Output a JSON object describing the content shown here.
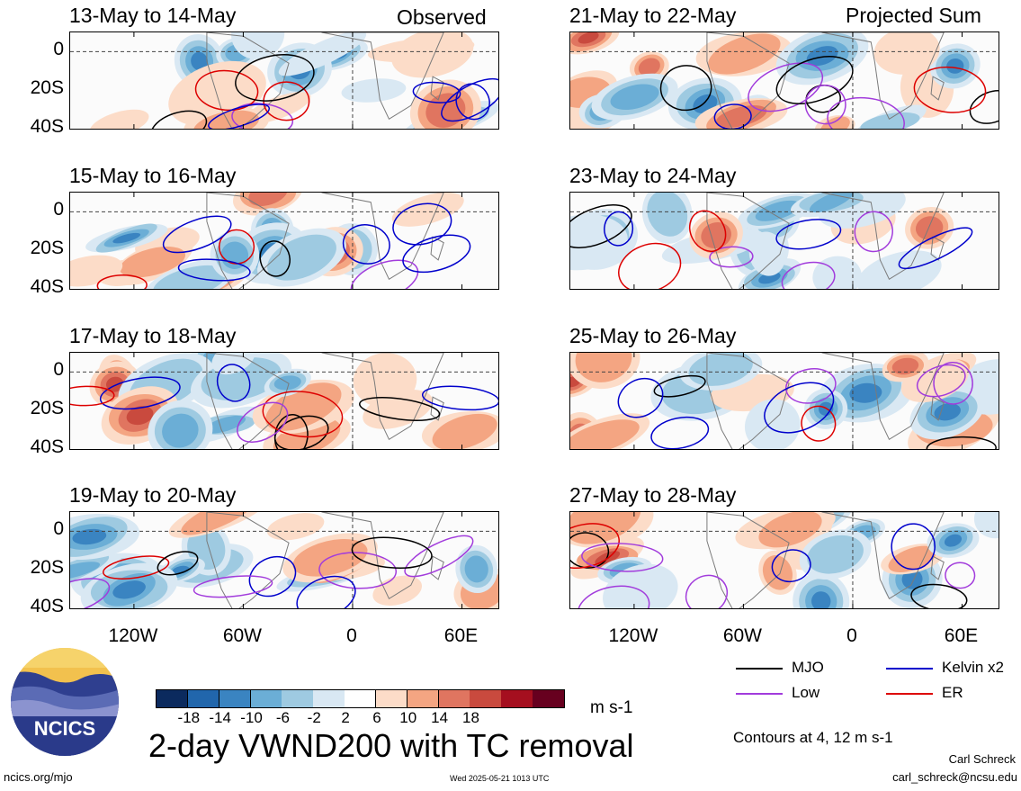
{
  "chart_data": {
    "type": "heatmap",
    "title": "2-day VWND200 with TC removal",
    "units": "m s-1",
    "colorbar_ticks": [
      "-18",
      "-14",
      "-10",
      "-6",
      "-2",
      "2",
      "6",
      "10",
      "14",
      "18"
    ],
    "colorbar_colors": [
      "#0b2a5e",
      "#2166ac",
      "#3a84c1",
      "#6baed6",
      "#9ecae1",
      "#d9e8f3",
      "#ffffff",
      "#fcdcc8",
      "#f4a582",
      "#e07560",
      "#c94a3e",
      "#a50f1f",
      "#67001f"
    ],
    "x_ticks": [
      "120W",
      "60W",
      "0",
      "60E"
    ],
    "y_ticks": [
      "0",
      "20S",
      "40S"
    ],
    "contour_note": "Contours at 4, 12 m s-1",
    "legend": [
      {
        "label": "MJO",
        "color": "#000000"
      },
      {
        "label": "Kelvin x2",
        "color": "#0000cc"
      },
      {
        "label": "Low",
        "color": "#a23cdc"
      },
      {
        "label": "ER",
        "color": "#dd0000"
      }
    ],
    "panels": [
      {
        "title": "13-May to 14-May",
        "column": "Observed"
      },
      {
        "title": "15-May to 16-May",
        "column": "Observed"
      },
      {
        "title": "17-May to 18-May",
        "column": "Observed"
      },
      {
        "title": "19-May to 20-May",
        "column": "Observed"
      },
      {
        "title": "21-May to 22-May",
        "column": "Projected Sum"
      },
      {
        "title": "23-May to 24-May",
        "column": "Projected Sum"
      },
      {
        "title": "25-May to 26-May",
        "column": "Projected Sum"
      },
      {
        "title": "27-May to 28-May",
        "column": "Projected Sum"
      }
    ]
  },
  "header": {
    "observed": "Observed",
    "projected": "Projected Sum"
  },
  "footer": {
    "logo_text": "NCICS",
    "url": "ncics.org/mjo",
    "timestamp": "Wed 2025-05-21 1013 UTC",
    "author": "Carl Schreck",
    "email": "carl_schreck@ncsu.edu"
  }
}
